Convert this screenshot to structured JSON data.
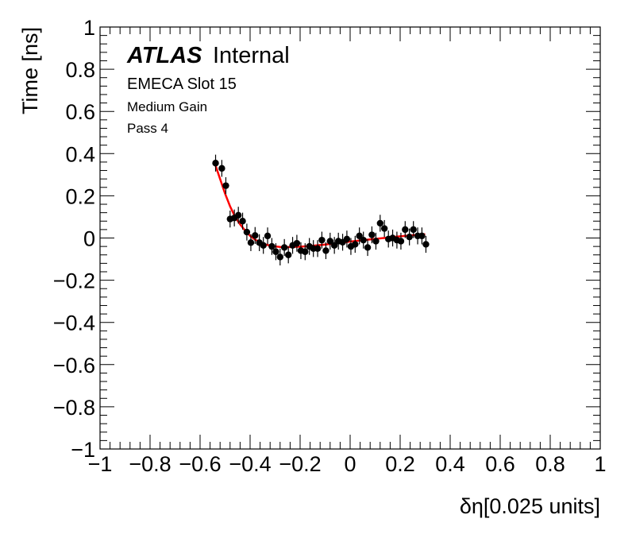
{
  "chart_data": {
    "type": "scatter",
    "xlabel": "δη[0.025 units]",
    "ylabel": "Time [ns]",
    "xlim": [
      -1,
      1
    ],
    "ylim": [
      -1,
      1
    ],
    "x_ticks": [
      -1,
      -0.8,
      -0.6,
      -0.4,
      -0.2,
      0,
      0.2,
      0.4,
      0.6,
      0.8,
      1
    ],
    "y_ticks": [
      -1,
      -0.8,
      -0.6,
      -0.4,
      -0.2,
      0,
      0.2,
      0.4,
      0.6,
      0.8,
      1
    ],
    "x_tick_labels": [
      "−1",
      "−0.8",
      "−0.6",
      "−0.4",
      "−0.2",
      "0",
      "0.2",
      "0.4",
      "0.6",
      "0.8",
      "1"
    ],
    "y_tick_labels": [
      "−1",
      "−0.8",
      "−0.6",
      "−0.4",
      "−0.2",
      "0",
      "0.2",
      "0.4",
      "0.6",
      "0.8",
      "1"
    ],
    "grid": false,
    "annotations": {
      "atlas": "ATLAS",
      "internal": "Internal",
      "line1": "EMECA Slot 15",
      "line2": "Medium Gain",
      "line3": "Pass 4"
    },
    "colors": {
      "points": "#000000",
      "fit": "#ff0000"
    },
    "series": [
      {
        "kind": "points-with-errors",
        "points": [
          {
            "x": -0.538,
            "y": 0.355,
            "err": 0.04
          },
          {
            "x": -0.513,
            "y": 0.33,
            "err": 0.04
          },
          {
            "x": -0.497,
            "y": 0.248,
            "err": 0.04
          },
          {
            "x": -0.48,
            "y": 0.09,
            "err": 0.04
          },
          {
            "x": -0.463,
            "y": 0.095,
            "err": 0.04
          },
          {
            "x": -0.447,
            "y": 0.108,
            "err": 0.04
          },
          {
            "x": -0.43,
            "y": 0.08,
            "err": 0.04
          },
          {
            "x": -0.413,
            "y": 0.028,
            "err": 0.04
          },
          {
            "x": -0.397,
            "y": -0.022,
            "err": 0.04
          },
          {
            "x": -0.38,
            "y": 0.012,
            "err": 0.04
          },
          {
            "x": -0.363,
            "y": -0.022,
            "err": 0.04
          },
          {
            "x": -0.347,
            "y": -0.035,
            "err": 0.04
          },
          {
            "x": -0.33,
            "y": 0.01,
            "err": 0.04
          },
          {
            "x": -0.313,
            "y": -0.04,
            "err": 0.04
          },
          {
            "x": -0.297,
            "y": -0.065,
            "err": 0.04
          },
          {
            "x": -0.28,
            "y": -0.09,
            "err": 0.04
          },
          {
            "x": -0.263,
            "y": -0.045,
            "err": 0.04
          },
          {
            "x": -0.247,
            "y": -0.08,
            "err": 0.04
          },
          {
            "x": -0.23,
            "y": -0.035,
            "err": 0.04
          },
          {
            "x": -0.213,
            "y": -0.025,
            "err": 0.04
          },
          {
            "x": -0.197,
            "y": -0.06,
            "err": 0.04
          },
          {
            "x": -0.18,
            "y": -0.065,
            "err": 0.04
          },
          {
            "x": -0.163,
            "y": -0.04,
            "err": 0.04
          },
          {
            "x": -0.147,
            "y": -0.05,
            "err": 0.04
          },
          {
            "x": -0.13,
            "y": -0.05,
            "err": 0.04
          },
          {
            "x": -0.113,
            "y": -0.01,
            "err": 0.04
          },
          {
            "x": -0.097,
            "y": -0.06,
            "err": 0.04
          },
          {
            "x": -0.08,
            "y": -0.015,
            "err": 0.04
          },
          {
            "x": -0.063,
            "y": -0.035,
            "err": 0.04
          },
          {
            "x": -0.047,
            "y": -0.015,
            "err": 0.04
          },
          {
            "x": -0.03,
            "y": -0.02,
            "err": 0.04
          },
          {
            "x": -0.013,
            "y": -0.005,
            "err": 0.04
          },
          {
            "x": 0.003,
            "y": -0.04,
            "err": 0.04
          },
          {
            "x": 0.02,
            "y": -0.03,
            "err": 0.04
          },
          {
            "x": 0.037,
            "y": 0.01,
            "err": 0.04
          },
          {
            "x": 0.053,
            "y": -0.01,
            "err": 0.04
          },
          {
            "x": 0.07,
            "y": -0.045,
            "err": 0.04
          },
          {
            "x": 0.087,
            "y": 0.015,
            "err": 0.04
          },
          {
            "x": 0.103,
            "y": -0.015,
            "err": 0.04
          },
          {
            "x": 0.12,
            "y": 0.07,
            "err": 0.04
          },
          {
            "x": 0.137,
            "y": 0.045,
            "err": 0.04
          },
          {
            "x": 0.153,
            "y": -0.005,
            "err": 0.04
          },
          {
            "x": 0.17,
            "y": 0.0,
            "err": 0.04
          },
          {
            "x": 0.187,
            "y": -0.01,
            "err": 0.04
          },
          {
            "x": 0.203,
            "y": -0.015,
            "err": 0.04
          },
          {
            "x": 0.22,
            "y": 0.04,
            "err": 0.04
          },
          {
            "x": 0.237,
            "y": 0.005,
            "err": 0.04
          },
          {
            "x": 0.253,
            "y": 0.04,
            "err": 0.04
          },
          {
            "x": 0.27,
            "y": 0.01,
            "err": 0.04
          },
          {
            "x": 0.287,
            "y": 0.01,
            "err": 0.04
          },
          {
            "x": 0.303,
            "y": -0.03,
            "err": 0.04
          }
        ]
      },
      {
        "kind": "fit-curve",
        "x": [
          -0.54,
          -0.52,
          -0.5,
          -0.48,
          -0.46,
          -0.44,
          -0.42,
          -0.4,
          -0.38,
          -0.36,
          -0.34,
          -0.32,
          -0.3,
          -0.28,
          -0.26,
          -0.24,
          -0.2,
          -0.15,
          -0.1,
          -0.05,
          0.0,
          0.05,
          0.1,
          0.15,
          0.2,
          0.25,
          0.3
        ],
        "y": [
          0.35,
          0.28,
          0.21,
          0.15,
          0.1,
          0.065,
          0.035,
          0.01,
          -0.008,
          -0.02,
          -0.03,
          -0.036,
          -0.04,
          -0.042,
          -0.043,
          -0.043,
          -0.041,
          -0.037,
          -0.031,
          -0.024,
          -0.017,
          -0.01,
          -0.004,
          0.002,
          0.008,
          0.013,
          0.018
        ]
      }
    ]
  }
}
